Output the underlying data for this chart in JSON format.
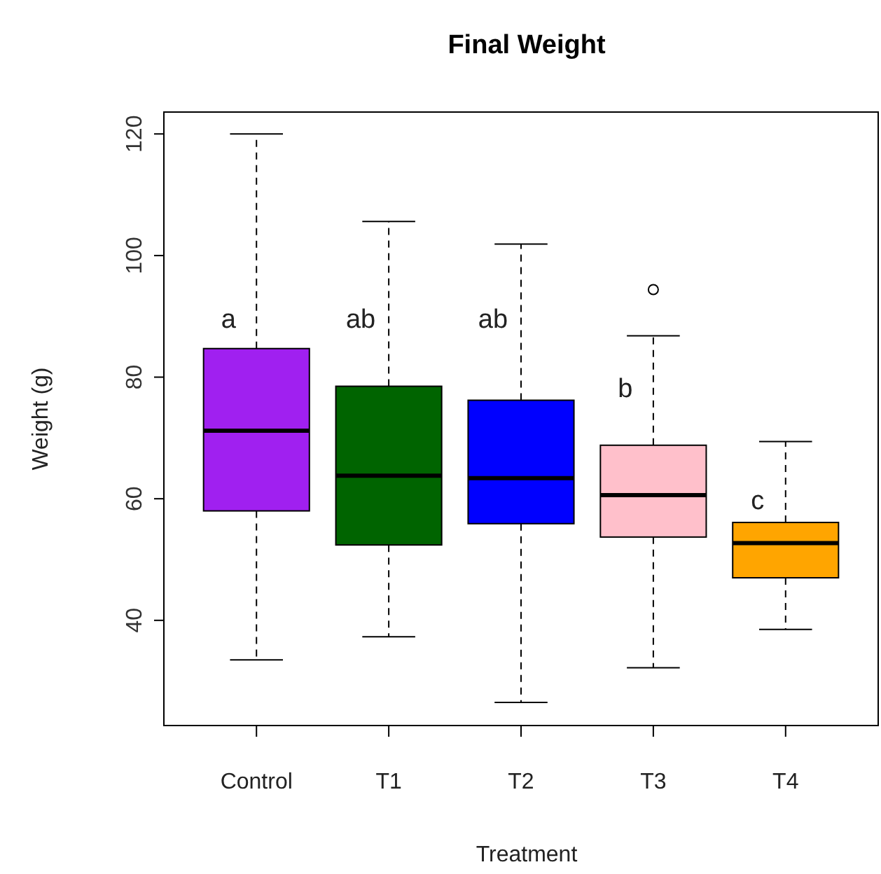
{
  "chart_data": {
    "type": "box",
    "title": "Final Weight",
    "xlabel": "Treatment",
    "ylabel": "Weight (g)",
    "categories": [
      "Control",
      "T1",
      "T2",
      "T3",
      "T4"
    ],
    "colors": [
      "#a020f0",
      "#006400",
      "#0000ff",
      "#ffc0cb",
      "#ffa500"
    ],
    "boxes": [
      {
        "low": 33.5,
        "q1": 58.0,
        "median": 71.2,
        "q3": 84.7,
        "high": 120
      },
      {
        "low": 37.3,
        "q1": 52.4,
        "median": 63.8,
        "q3": 78.5,
        "high": 105.6
      },
      {
        "low": 26.5,
        "q1": 55.9,
        "median": 63.4,
        "q3": 76.2,
        "high": 101.9
      },
      {
        "low": 32.2,
        "q1": 53.7,
        "median": 60.6,
        "q3": 68.8,
        "high": 86.8,
        "outliers": [
          94.4
        ]
      },
      {
        "low": 38.5,
        "q1": 47.0,
        "median": 52.7,
        "q3": 56.1,
        "high": 69.4
      }
    ],
    "ylim": [
      22.7,
      123.6
    ],
    "yticks": [
      40,
      60,
      80,
      100,
      120
    ],
    "annotations": [
      {
        "text": "a",
        "x": "Control",
        "y": 89.4
      },
      {
        "text": "ab",
        "x": "T1",
        "y": 89.4
      },
      {
        "text": "ab",
        "x": "T2",
        "y": 89.4
      },
      {
        "text": "b",
        "x": "T3",
        "y": 78
      },
      {
        "text": "c",
        "x": "T4",
        "y": 59.6
      }
    ],
    "grid": false
  }
}
